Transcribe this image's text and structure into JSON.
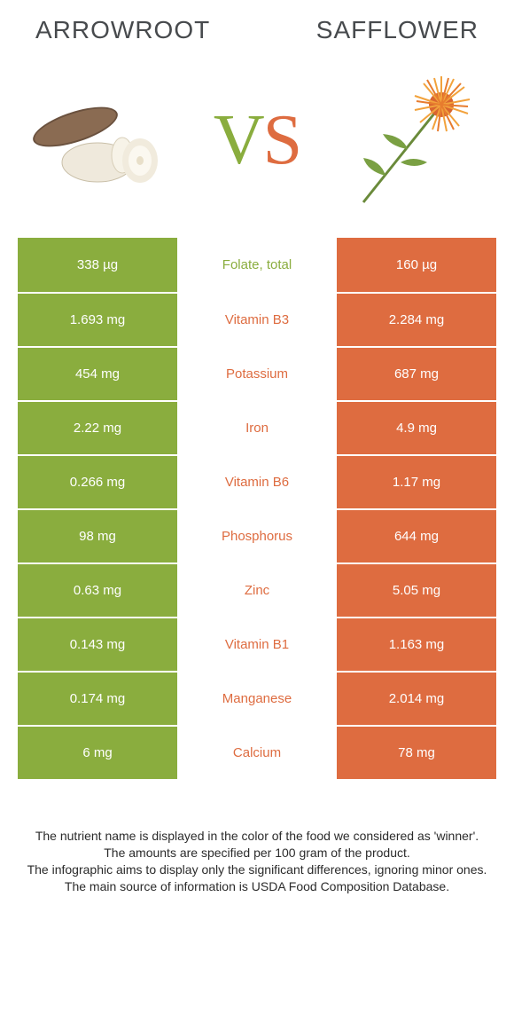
{
  "colors": {
    "left": "#8aad3e",
    "right": "#de6c40",
    "left_text": "#8aad3e",
    "right_text": "#de6c40"
  },
  "header": {
    "left_title": "Arrowroot",
    "right_title": "Safflower",
    "vs_v": "V",
    "vs_s": "S"
  },
  "rows": [
    {
      "left": "338 µg",
      "name": "Folate, total",
      "right": "160 µg",
      "winner": "left"
    },
    {
      "left": "1.693 mg",
      "name": "Vitamin B3",
      "right": "2.284 mg",
      "winner": "right"
    },
    {
      "left": "454 mg",
      "name": "Potassium",
      "right": "687 mg",
      "winner": "right"
    },
    {
      "left": "2.22 mg",
      "name": "Iron",
      "right": "4.9 mg",
      "winner": "right"
    },
    {
      "left": "0.266 mg",
      "name": "Vitamin B6",
      "right": "1.17 mg",
      "winner": "right"
    },
    {
      "left": "98 mg",
      "name": "Phosphorus",
      "right": "644 mg",
      "winner": "right"
    },
    {
      "left": "0.63 mg",
      "name": "Zinc",
      "right": "5.05 mg",
      "winner": "right"
    },
    {
      "left": "0.143 mg",
      "name": "Vitamin B1",
      "right": "1.163 mg",
      "winner": "right"
    },
    {
      "left": "0.174 mg",
      "name": "Manganese",
      "right": "2.014 mg",
      "winner": "right"
    },
    {
      "left": "6 mg",
      "name": "Calcium",
      "right": "78 mg",
      "winner": "right"
    }
  ],
  "footer": {
    "line1": "The nutrient name is displayed in the color of the food we considered as 'winner'.",
    "line2": "The amounts are specified per 100 gram of the product.",
    "line3": "The infographic aims to display only the significant differences, ignoring minor ones.",
    "line4": "The main source of information is USDA Food Composition Database."
  }
}
